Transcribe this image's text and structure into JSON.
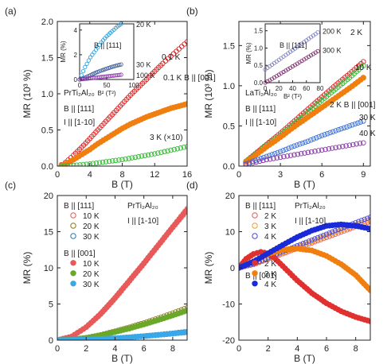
{
  "chart_data": [
    {
      "panel_label": "(a)",
      "type": "scatter",
      "xlabel": "B (T)",
      "ylabel": "MR (10³ %)",
      "xlim": [
        0,
        16
      ],
      "ylim": [
        0,
        2.0
      ],
      "xticks": [
        0,
        4,
        8,
        12,
        16
      ],
      "yticks": [
        0.0,
        0.5,
        1.0,
        1.5,
        2.0
      ],
      "text": [
        "PrTi₂Al₂₀",
        "B || [111]",
        "I || [1-10]"
      ],
      "series": [
        {
          "name": "0.1 K",
          "marker": "open-circle",
          "color": "#dd2222",
          "x": [
            0.5,
            1,
            2,
            3,
            4,
            5,
            6,
            7,
            8,
            9,
            10,
            11,
            12,
            13,
            14,
            15,
            16
          ],
          "y": [
            0.02,
            0.05,
            0.15,
            0.26,
            0.38,
            0.5,
            0.62,
            0.74,
            0.86,
            0.98,
            1.09,
            1.2,
            1.31,
            1.42,
            1.52,
            1.62,
            1.72
          ]
        },
        {
          "name": "0.1 K B || [001]",
          "marker": "filled-circle",
          "color": "#f07f10",
          "x": [
            0.5,
            1,
            2,
            3,
            4,
            5,
            6,
            7,
            8,
            9,
            10,
            11,
            12,
            13,
            14,
            15,
            16
          ],
          "y": [
            0.01,
            0.03,
            0.09,
            0.16,
            0.23,
            0.31,
            0.38,
            0.45,
            0.52,
            0.58,
            0.63,
            0.68,
            0.72,
            0.76,
            0.8,
            0.83,
            0.86
          ]
        },
        {
          "name": "3 K (×10)",
          "marker": "open-circle",
          "color": "#33bb33",
          "x": [
            0.5,
            2,
            4,
            6,
            8,
            10,
            12,
            14,
            16
          ],
          "y": [
            0.0,
            0.01,
            0.03,
            0.06,
            0.09,
            0.13,
            0.17,
            0.22,
            0.27
          ]
        }
      ],
      "inset": {
        "xlabel": "B² (T²)",
        "ylabel": "MR (%)",
        "xlim": [
          0,
          100
        ],
        "ylim": [
          0,
          4.5
        ],
        "xticks": [
          0,
          50,
          100
        ],
        "yticks": [
          0,
          2,
          4
        ],
        "text": [
          "B || [111]"
        ],
        "series": [
          {
            "name": "20 K",
            "color": "#1e9be0",
            "x": [
              0,
              10,
              20,
              30,
              40,
              50,
              60,
              70,
              80
            ],
            "y": [
              0,
              1.0,
              1.8,
              2.4,
              3.0,
              3.5,
              3.9,
              4.3,
              4.6
            ]
          },
          {
            "name": "30 K",
            "color": "#3b5a9a",
            "x": [
              0,
              10,
              20,
              30,
              40,
              50,
              60,
              70,
              80
            ],
            "y": [
              0,
              0.15,
              0.35,
              0.55,
              0.72,
              0.88,
              1.02,
              1.15,
              1.25
            ]
          },
          {
            "name": "100 K",
            "color": "#8a3aa8",
            "x": [
              0,
              10,
              20,
              30,
              40,
              50,
              60,
              70,
              80
            ],
            "y": [
              0,
              0.05,
              0.1,
              0.15,
              0.2,
              0.25,
              0.3,
              0.35,
              0.4
            ]
          }
        ]
      }
    },
    {
      "panel_label": "(b)",
      "type": "scatter",
      "xlabel": "B (T)",
      "ylabel": "MR (10³ %)",
      "xlim": [
        0,
        9.5
      ],
      "ylim": [
        0,
        1.8
      ],
      "xticks": [
        0,
        3,
        6,
        9
      ],
      "yticks": [
        0.0,
        0.5,
        1.0,
        1.5
      ],
      "text": [
        "LaTi₂Al₂₀",
        "B || [111]",
        "I || [1-10]"
      ],
      "series": [
        {
          "name": "2 K",
          "marker": "open-circle",
          "color": "#dd2222",
          "x": [
            0.5,
            1,
            2,
            3,
            4,
            5,
            6,
            7,
            8,
            9
          ],
          "y": [
            0.06,
            0.13,
            0.27,
            0.41,
            0.56,
            0.71,
            0.86,
            1.01,
            1.15,
            1.3
          ]
        },
        {
          "name": "10 K",
          "marker": "open-circle",
          "color": "#33bb33",
          "x": [
            0.5,
            1,
            2,
            3,
            4,
            5,
            6,
            7,
            8,
            9
          ],
          "y": [
            0.06,
            0.12,
            0.26,
            0.39,
            0.53,
            0.67,
            0.82,
            0.96,
            1.1,
            1.25
          ]
        },
        {
          "name": "2 K B || [001]",
          "marker": "filled-circle",
          "color": "#f07f10",
          "x": [
            0.5,
            1,
            2,
            3,
            4,
            5,
            6,
            7,
            8,
            9
          ],
          "y": [
            0.05,
            0.11,
            0.24,
            0.36,
            0.49,
            0.61,
            0.73,
            0.85,
            0.97,
            1.1
          ]
        },
        {
          "name": "30 K",
          "marker": "open-circle",
          "color": "#3b6fd8",
          "x": [
            0.5,
            1,
            2,
            3,
            4,
            5,
            6,
            7,
            8,
            9
          ],
          "y": [
            0.03,
            0.06,
            0.12,
            0.18,
            0.25,
            0.31,
            0.38,
            0.44,
            0.5,
            0.56
          ]
        },
        {
          "name": "40 K",
          "marker": "open-circle",
          "color": "#8a3aa8",
          "x": [
            0.5,
            1,
            2,
            3,
            4,
            5,
            6,
            7,
            8,
            9
          ],
          "y": [
            0.02,
            0.04,
            0.08,
            0.11,
            0.14,
            0.17,
            0.2,
            0.23,
            0.26,
            0.29
          ]
        }
      ],
      "inset": {
        "xlabel": "B² (T²)",
        "ylabel": "MR (%)",
        "xlim": [
          0,
          80
        ],
        "ylim": [
          0,
          1.7
        ],
        "xticks": [
          0,
          20,
          40,
          60,
          80
        ],
        "yticks": [
          0.0,
          0.5,
          1.0,
          1.5
        ],
        "text": [
          "B || [111]"
        ],
        "series": [
          {
            "name": "200 K",
            "color": "#7a7fc0",
            "x": [
              0,
              10,
              20,
              30,
              40,
              50,
              60,
              70,
              80
            ],
            "y": [
              0.38,
              0.52,
              0.66,
              0.8,
              0.94,
              1.08,
              1.22,
              1.36,
              1.5
            ]
          },
          {
            "name": "300 K",
            "color": "#7a2a6a",
            "x": [
              0,
              10,
              20,
              30,
              40,
              50,
              60,
              70,
              80
            ],
            "y": [
              0.0,
              0.11,
              0.23,
              0.35,
              0.47,
              0.59,
              0.71,
              0.83,
              0.95
            ]
          }
        ]
      }
    },
    {
      "panel_label": "(c)",
      "type": "scatter",
      "xlabel": "B (T)",
      "ylabel": "MR (%)",
      "xlim": [
        0,
        9
      ],
      "ylim": [
        0,
        20
      ],
      "xticks": [
        0,
        2,
        4,
        6,
        8
      ],
      "yticks": [
        0,
        5,
        10,
        15,
        20
      ],
      "text": [
        "PrTi₂Al₂₀",
        "I || [1-10]",
        "B || [111]",
        "B || [001]"
      ],
      "series": [
        {
          "name": "10 K",
          "group": "B || [111]",
          "marker": "open-circle",
          "color": "#e85a5a",
          "x": [
            0,
            1,
            2,
            3,
            4,
            5,
            6,
            7,
            8,
            9
          ],
          "y": [
            0,
            0.5,
            1.8,
            3.7,
            5.9,
            8.3,
            10.7,
            13.2,
            15.7,
            18.2
          ]
        },
        {
          "name": "20 K",
          "group": "B || [111]",
          "marker": "open-circle",
          "color": "#8a7a1a",
          "x": [
            0,
            1,
            2,
            3,
            4,
            5,
            6,
            7,
            8,
            9
          ],
          "y": [
            0,
            0.1,
            0.35,
            0.75,
            1.25,
            1.8,
            2.4,
            3.05,
            3.75,
            4.5
          ]
        },
        {
          "name": "30 K",
          "group": "B || [111]",
          "marker": "open-circle",
          "color": "#2a7ab8",
          "x": [
            0,
            1,
            2,
            3,
            4,
            5,
            6,
            7,
            8,
            9
          ],
          "y": [
            0,
            0.02,
            0.08,
            0.17,
            0.29,
            0.43,
            0.59,
            0.77,
            0.97,
            1.2
          ]
        },
        {
          "name": "10 K",
          "group": "B || [001]",
          "marker": "filled-circle",
          "color": "#e85a5a",
          "x": [
            0,
            1,
            2,
            3,
            4,
            5,
            6,
            7,
            8,
            9
          ],
          "y": [
            0,
            0.5,
            1.8,
            3.6,
            5.8,
            8.2,
            10.6,
            13.1,
            15.6,
            18.0
          ]
        },
        {
          "name": "20 K",
          "group": "B || [001]",
          "marker": "filled-circle",
          "color": "#6aa82a",
          "x": [
            0,
            1,
            2,
            3,
            4,
            5,
            6,
            7,
            8,
            9
          ],
          "y": [
            0,
            0.1,
            0.32,
            0.68,
            1.12,
            1.62,
            2.18,
            2.78,
            3.42,
            4.1
          ]
        },
        {
          "name": "30 K",
          "group": "B || [001]",
          "marker": "filled-circle",
          "color": "#3aa8e8",
          "x": [
            0,
            1,
            2,
            3,
            4,
            5,
            6,
            7,
            8,
            9
          ],
          "y": [
            0,
            0.02,
            0.07,
            0.15,
            0.26,
            0.4,
            0.55,
            0.72,
            0.9,
            1.1
          ]
        }
      ]
    },
    {
      "panel_label": "(d)",
      "type": "scatter",
      "xlabel": "B (T)",
      "ylabel": "MR (%)",
      "xlim": [
        0,
        9
      ],
      "ylim": [
        -20,
        20
      ],
      "xticks": [
        0,
        2,
        4,
        6,
        8
      ],
      "yticks": [
        -20,
        -10,
        0,
        10,
        20
      ],
      "text": [
        "PrTi₂Al₂₀",
        "I || [1-10]",
        "B || [111]",
        "B || [001]"
      ],
      "series": [
        {
          "name": "2 K",
          "group": "B || [111]",
          "marker": "open-circle",
          "color": "#e85a5a",
          "x": [
            0,
            1,
            2,
            3,
            4,
            5,
            6,
            7,
            8,
            9
          ],
          "y": [
            0,
            0.9,
            2.4,
            3.9,
            5.4,
            6.9,
            8.4,
            9.9,
            11.4,
            12.8
          ]
        },
        {
          "name": "3 K",
          "group": "B || [111]",
          "marker": "open-circle",
          "color": "#f0a030",
          "x": [
            0,
            1,
            2,
            3,
            4,
            5,
            6,
            7,
            8,
            9
          ],
          "y": [
            0,
            1.0,
            2.6,
            4.2,
            5.8,
            7.3,
            8.9,
            10.4,
            11.9,
            13.4
          ]
        },
        {
          "name": "4 K",
          "group": "B || [111]",
          "marker": "open-circle",
          "color": "#4a4ad8",
          "x": [
            0,
            1,
            2,
            3,
            4,
            5,
            6,
            7,
            8,
            9
          ],
          "y": [
            0,
            1.1,
            2.8,
            4.5,
            6.1,
            7.7,
            9.3,
            10.9,
            12.5,
            14.0
          ]
        },
        {
          "name": "2 K",
          "group": "B || [001]",
          "marker": "filled-circle",
          "color": "#e03030",
          "x": [
            0,
            0.5,
            1,
            1.5,
            2,
            2.5,
            3,
            3.5,
            4,
            5,
            6,
            7,
            8,
            9
          ],
          "y": [
            0,
            2.5,
            3.8,
            4.4,
            4.0,
            2.5,
            0.5,
            -1.5,
            -3.5,
            -7.0,
            -9.8,
            -12.0,
            -13.6,
            -14.8
          ]
        },
        {
          "name": "3 K",
          "group": "B || [001]",
          "marker": "filled-circle",
          "color": "#f07f10",
          "x": [
            0,
            1,
            2,
            3,
            4,
            5,
            6,
            7,
            8,
            9
          ],
          "y": [
            0,
            1.8,
            3.8,
            5.0,
            5.3,
            4.8,
            3.3,
            1.0,
            -2.0,
            -6.2
          ]
        },
        {
          "name": "4 K",
          "group": "B || [001]",
          "marker": "filled-circle",
          "color": "#1a2ad8",
          "x": [
            0,
            1,
            2,
            3,
            4,
            5,
            6,
            7,
            8,
            9
          ],
          "y": [
            0,
            1.7,
            4.0,
            6.3,
            8.5,
            10.3,
            11.6,
            12.0,
            11.6,
            10.8
          ]
        }
      ]
    }
  ]
}
